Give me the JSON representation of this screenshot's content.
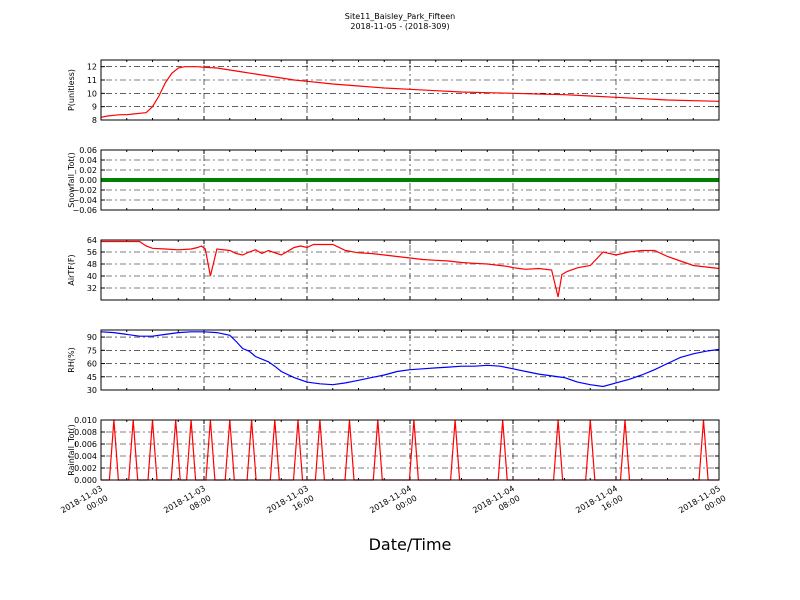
{
  "figure": {
    "title_line1": "Site11_Baisley_Park_Fifteen",
    "title_line2": "2018-11-05 - (2018-309)",
    "xlabel": "Date/Time"
  },
  "chart_data": [
    {
      "type": "line",
      "ylabel": "P(unitless)",
      "ylim": [
        8,
        12.5
      ],
      "yticks": [
        "8",
        "9",
        "10",
        "11",
        "12"
      ],
      "color": "#ff0000",
      "grid": true,
      "xlim": [
        0,
        48
      ],
      "x": [
        0,
        0.5,
        1,
        1.5,
        2,
        2.5,
        3,
        3.5,
        4,
        4.5,
        5,
        5.5,
        6,
        6.5,
        7,
        7.5,
        8,
        9,
        10,
        11,
        12,
        13,
        14,
        15,
        16,
        18,
        20,
        22,
        24,
        26,
        28,
        30,
        32,
        34,
        36,
        38,
        40,
        42,
        44,
        46,
        48
      ],
      "values": [
        8.2,
        8.3,
        8.35,
        8.4,
        8.4,
        8.45,
        8.5,
        8.55,
        9.0,
        9.8,
        10.8,
        11.5,
        11.9,
        12.0,
        12.0,
        12.0,
        11.95,
        11.9,
        11.75,
        11.6,
        11.45,
        11.3,
        11.15,
        11.0,
        10.9,
        10.7,
        10.55,
        10.4,
        10.3,
        10.2,
        10.1,
        10.05,
        10.0,
        9.95,
        9.9,
        9.8,
        9.7,
        9.6,
        9.5,
        9.45,
        9.4
      ]
    },
    {
      "type": "line",
      "ylabel": "Snowfall_Tot()",
      "ylim": [
        -0.06,
        0.06
      ],
      "yticks": [
        "−0.06",
        "−0.04",
        "−0.02",
        "0.00",
        "0.02",
        "0.04",
        "0.06"
      ],
      "color": "#008000",
      "grid": true,
      "xlim": [
        0,
        48
      ],
      "x": [
        0,
        48
      ],
      "values": [
        0,
        0
      ]
    },
    {
      "type": "line",
      "ylabel": "AirTF(F)",
      "ylim": [
        24,
        64
      ],
      "yticks": [
        "32",
        "40",
        "48",
        "56",
        "64"
      ],
      "color": "#ff0000",
      "grid": true,
      "xlim": [
        0,
        48
      ],
      "x": [
        0,
        1,
        2,
        3,
        3.5,
        4,
        5,
        6,
        7,
        7.5,
        7.8,
        8.1,
        8.5,
        9,
        10,
        10.5,
        11,
        11.5,
        12,
        12.5,
        13,
        14,
        15,
        15.5,
        16,
        16.5,
        17,
        18,
        19,
        20,
        21,
        22,
        23,
        24,
        25,
        26,
        27,
        28,
        29,
        30,
        31,
        31.5,
        31.8,
        32.1,
        32.5,
        33,
        34,
        35,
        35.5,
        35.8,
        36.2,
        37,
        38,
        39,
        40,
        40.5,
        41,
        42,
        43,
        44,
        45,
        46,
        47,
        48
      ],
      "values": [
        63,
        63,
        63,
        63,
        60,
        58.5,
        58,
        57.5,
        58,
        59,
        60,
        58,
        40,
        58,
        57,
        55,
        54,
        56,
        57.5,
        55,
        57,
        54,
        59,
        60,
        59,
        61,
        61,
        61,
        57,
        55.5,
        55,
        54,
        53,
        52,
        51,
        50.5,
        50,
        49,
        48.5,
        48,
        47,
        46.5,
        46,
        45.5,
        45,
        44.5,
        45,
        44,
        26,
        41,
        43,
        45.5,
        47,
        56,
        54,
        55,
        56,
        57,
        57,
        53,
        50,
        47,
        46,
        45
      ]
    },
    {
      "type": "line",
      "ylabel": "RH(%)",
      "ylim": [
        30,
        98
      ],
      "yticks": [
        "30",
        "45",
        "60",
        "75",
        "90"
      ],
      "color": "#0000ff",
      "grid": true,
      "xlim": [
        0,
        48
      ],
      "x": [
        0,
        1,
        2,
        3,
        4,
        5,
        6,
        7,
        8,
        9,
        10,
        10.5,
        11,
        11.5,
        12,
        13,
        13.5,
        14,
        15,
        16,
        17,
        18,
        19,
        20,
        21,
        22,
        23,
        24,
        25,
        26,
        27,
        28,
        29,
        30,
        31,
        32,
        33,
        34,
        35,
        36,
        37,
        38,
        39,
        40,
        41,
        42,
        43,
        44,
        45,
        46,
        47,
        48
      ],
      "values": [
        96,
        95,
        93,
        91,
        91,
        93,
        95,
        96,
        96,
        95,
        92,
        85,
        77,
        74,
        68,
        62,
        57,
        51,
        44,
        39,
        37,
        36,
        38,
        41,
        44,
        47,
        51,
        53,
        54,
        55,
        56,
        57,
        57,
        58,
        57,
        54,
        51,
        48,
        46,
        44,
        39,
        36,
        34,
        38,
        42,
        47,
        53,
        60,
        67,
        71,
        74,
        76
      ]
    },
    {
      "type": "line",
      "ylabel": "Rainfall_Tot()",
      "ylim": [
        0,
        0.01
      ],
      "yticks": [
        "0.000",
        "0.002",
        "0.004",
        "0.006",
        "0.008",
        "0.010"
      ],
      "color": "#ff0000",
      "grid": true,
      "xlim": [
        0,
        48
      ],
      "spike_x": [
        1,
        2.5,
        4,
        5.8,
        7,
        8.5,
        10,
        11.7,
        13.5,
        15.3,
        17,
        19.3,
        21.5,
        24.3,
        27.5,
        31.2,
        35.5,
        38,
        40.7,
        46.8
      ],
      "spike_value": 0.01
    }
  ],
  "xaxis": {
    "ticks": [
      {
        "x": 0,
        "label": "2018-11-03\n00:00"
      },
      {
        "x": 8,
        "label": "2018-11-03\n08:00"
      },
      {
        "x": 16,
        "label": "2018-11-03\n16:00"
      },
      {
        "x": 24,
        "label": "2018-11-04\n00:00"
      },
      {
        "x": 32,
        "label": "2018-11-04\n08:00"
      },
      {
        "x": 40,
        "label": "2018-11-04\n16:00"
      },
      {
        "x": 48,
        "label": "2018-11-05\n00:00"
      }
    ]
  }
}
